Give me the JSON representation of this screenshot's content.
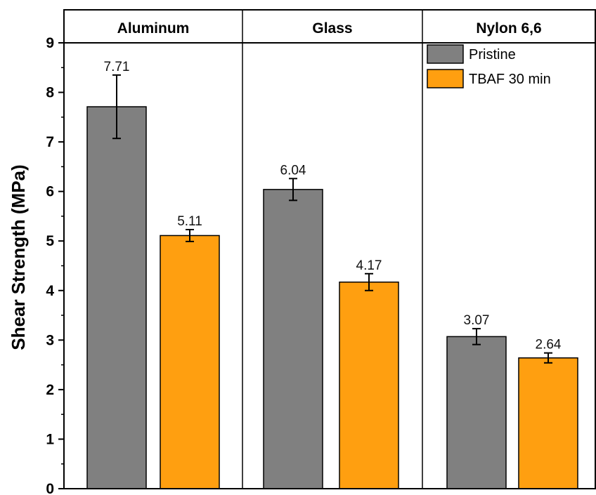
{
  "chart_data": {
    "type": "bar",
    "ylabel": "Shear Strength (MPa)",
    "ylim": [
      0,
      9
    ],
    "y_ticks": [
      "0",
      "1",
      "2",
      "3",
      "4",
      "5",
      "6",
      "7",
      "8",
      "9"
    ],
    "panels": [
      "Aluminum",
      "Glass",
      "Nylon 6,6"
    ],
    "series": [
      {
        "name": "Pristine",
        "color": "#808080",
        "values": [
          7.71,
          6.04,
          3.07
        ],
        "errors": [
          0.64,
          0.22,
          0.16
        ],
        "labels": [
          "7.71",
          "6.04",
          "3.07"
        ]
      },
      {
        "name": "TBAF 30 min",
        "color": "#FF9F10",
        "values": [
          5.11,
          4.17,
          2.64
        ],
        "errors": [
          0.12,
          0.17,
          0.1
        ],
        "labels": [
          "5.11",
          "4.17",
          "2.64"
        ]
      }
    ],
    "legend_position": "top-right",
    "grid": false
  }
}
